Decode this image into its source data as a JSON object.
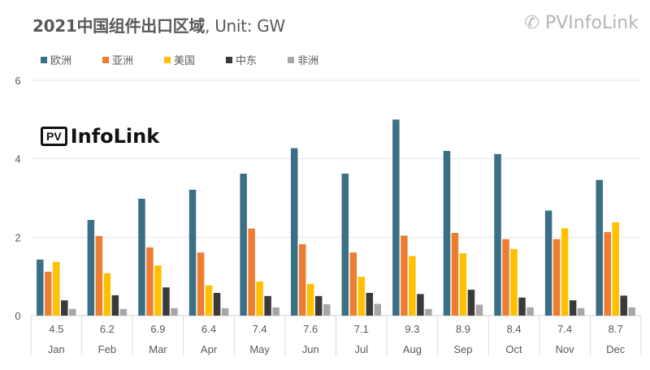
{
  "chart_data": {
    "type": "bar",
    "title": "2021中国组件出口区域",
    "title_unit": ", Unit: GW",
    "categories": [
      "Jan",
      "Feb",
      "Mar",
      "Apr",
      "May",
      "Jun",
      "Jul",
      "Aug",
      "Sep",
      "Oct",
      "Nov",
      "Dec"
    ],
    "totals": [
      "4.5",
      "6.2",
      "6.9",
      "6.4",
      "7.4",
      "7.6",
      "7.1",
      "9.3",
      "8.9",
      "8.4",
      "7.4",
      "8.7"
    ],
    "series": [
      {
        "name": "欧洲",
        "color": "#3a6f85",
        "values": [
          1.43,
          2.44,
          2.98,
          3.21,
          3.62,
          4.27,
          3.62,
          5.0,
          4.2,
          4.12,
          2.68,
          3.46
        ]
      },
      {
        "name": "亚洲",
        "color": "#ed7d31",
        "values": [
          1.12,
          2.03,
          1.74,
          1.61,
          2.22,
          1.82,
          1.61,
          2.04,
          2.11,
          1.95,
          1.95,
          2.13
        ]
      },
      {
        "name": "美国",
        "color": "#ffc000",
        "values": [
          1.37,
          1.08,
          1.28,
          0.77,
          0.87,
          0.81,
          0.99,
          1.52,
          1.59,
          1.7,
          2.23,
          2.38
        ]
      },
      {
        "name": "中东",
        "color": "#3a3a3a",
        "values": [
          0.39,
          0.52,
          0.72,
          0.58,
          0.5,
          0.5,
          0.58,
          0.55,
          0.66,
          0.46,
          0.39,
          0.51
        ]
      },
      {
        "name": "非洲",
        "color": "#aaa6a6",
        "values": [
          0.17,
          0.17,
          0.19,
          0.19,
          0.21,
          0.29,
          0.3,
          0.17,
          0.28,
          0.21,
          0.19,
          0.21
        ]
      }
    ],
    "ylim": [
      0,
      6
    ],
    "yticks": [
      0,
      2,
      4,
      6
    ],
    "grid": true,
    "legend": "top"
  },
  "logo": {
    "box": "PV",
    "text": "InfoLink"
  },
  "watermark": "PVInfoLink"
}
